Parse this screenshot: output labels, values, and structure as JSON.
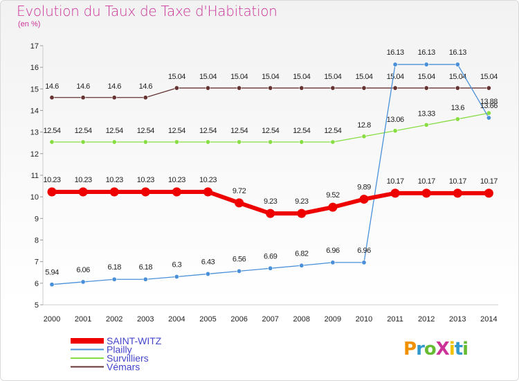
{
  "title": "Evolution du Taux de Taxe d'Habitation",
  "unit": "(en %)",
  "logo": "ProXiti",
  "chart_data": {
    "type": "line",
    "title": "Evolution du Taux de Taxe d'Habitation",
    "ylabel": "(en %)",
    "x": [
      "2000",
      "2001",
      "2002",
      "2003",
      "2004",
      "2005",
      "2006",
      "2007",
      "2008",
      "2009",
      "2010",
      "2011",
      "2012",
      "2013",
      "2014"
    ],
    "ylim": [
      5,
      17
    ],
    "yticks": [
      "5",
      "6",
      "7",
      "8",
      "9",
      "10",
      "11",
      "12",
      "13",
      "14",
      "15",
      "16",
      "17"
    ],
    "grid": false,
    "legend": "bottom-left",
    "series": [
      {
        "name": "SAINT-WITZ",
        "color": "#ee0000",
        "values": [
          10.23,
          10.23,
          10.23,
          10.23,
          10.23,
          10.23,
          9.72,
          9.23,
          9.23,
          9.52,
          9.89,
          10.17,
          10.17,
          10.17,
          10.17
        ],
        "labels": [
          "10.23",
          "10.23",
          "10.23",
          "10.23",
          "10.23",
          "10.23",
          "9.72",
          "9.23",
          "9.23",
          "9.52",
          "9.89",
          "10.17",
          "10.17",
          "10.17",
          "10.17"
        ]
      },
      {
        "name": "Plailly",
        "color": "#4a90d9",
        "values": [
          5.94,
          6.06,
          6.18,
          6.18,
          6.3,
          6.43,
          6.56,
          6.69,
          6.82,
          6.96,
          6.96,
          16.13,
          16.13,
          16.13,
          13.66
        ],
        "labels": [
          "5.94",
          "6.06",
          "6.18",
          "6.18",
          "6.3",
          "6.43",
          "6.56",
          "6.69",
          "6.82",
          "6.96",
          "6.96",
          "16.13",
          "16.13",
          "16.13",
          "13.66"
        ]
      },
      {
        "name": "Survilliers",
        "color": "#88dd44",
        "values": [
          12.54,
          12.54,
          12.54,
          12.54,
          12.54,
          12.54,
          12.54,
          12.54,
          12.54,
          12.54,
          12.8,
          13.06,
          13.33,
          13.6,
          13.88
        ],
        "labels": [
          "12.54",
          "12.54",
          "12.54",
          "12.54",
          "12.54",
          "12.54",
          "12.54",
          "12.54",
          "12.54",
          "12.54",
          "12.8",
          "13.06",
          "13.33",
          "13.6",
          "13.88"
        ]
      },
      {
        "name": "Vémars",
        "color": "#663333",
        "values": [
          14.6,
          14.6,
          14.6,
          14.6,
          15.04,
          15.04,
          15.04,
          15.04,
          15.04,
          15.04,
          15.04,
          15.04,
          15.04,
          15.04,
          15.04
        ],
        "labels": [
          "14.6",
          "14.6",
          "14.6",
          "14.6",
          "15.04",
          "15.04",
          "15.04",
          "15.04",
          "15.04",
          "15.04",
          "15.04",
          "15.04",
          "15.04",
          "15.04",
          "15.04"
        ]
      }
    ]
  }
}
